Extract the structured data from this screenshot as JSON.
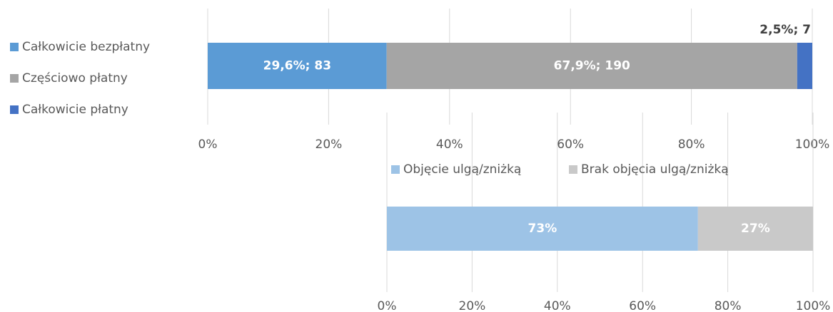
{
  "chart_data": [
    {
      "type": "stacked_bar_h",
      "categories": [
        null
      ],
      "series": [
        {
          "name": "Całkowicie bezpłatny",
          "color": "#5b9bd5",
          "values": [
            29.6
          ],
          "value_labels": [
            "29,6%; 83"
          ]
        },
        {
          "name": "Częściowo płatny",
          "color": "#a5a5a5",
          "values": [
            67.9
          ],
          "value_labels": [
            "67,9%; 190"
          ]
        },
        {
          "name": "Całkowicie płatny",
          "color": "#4472c4",
          "values": [
            2.5
          ],
          "value_labels": [
            "2,5%; 7"
          ]
        }
      ],
      "xlim": [
        0,
        100
      ],
      "xticks": [
        {
          "value": 0,
          "label": "0%"
        },
        {
          "value": 20,
          "label": "20%"
        },
        {
          "value": 40,
          "label": "40%"
        },
        {
          "value": 60,
          "label": "60%"
        },
        {
          "value": 80,
          "label": "80%"
        },
        {
          "value": 100,
          "label": "100%"
        }
      ],
      "grid": true,
      "legend": "left"
    },
    {
      "type": "stacked_bar_h",
      "categories": [
        null
      ],
      "series": [
        {
          "name": "Objęcie ulgą/zniżką",
          "color": "#9dc3e6",
          "values": [
            73
          ],
          "value_labels": [
            "73%"
          ]
        },
        {
          "name": "Brak objęcia ulgą/zniżką",
          "color": "#c9c9c9",
          "values": [
            27
          ],
          "value_labels": [
            "27%"
          ]
        }
      ],
      "xlim": [
        0,
        100
      ],
      "xticks": [
        {
          "value": 0,
          "label": "0%"
        },
        {
          "value": 20,
          "label": "20%"
        },
        {
          "value": 40,
          "label": "40%"
        },
        {
          "value": 60,
          "label": "60%"
        },
        {
          "value": 80,
          "label": "80%"
        },
        {
          "value": 100,
          "label": "100%"
        }
      ],
      "grid": true,
      "legend": "top"
    }
  ]
}
